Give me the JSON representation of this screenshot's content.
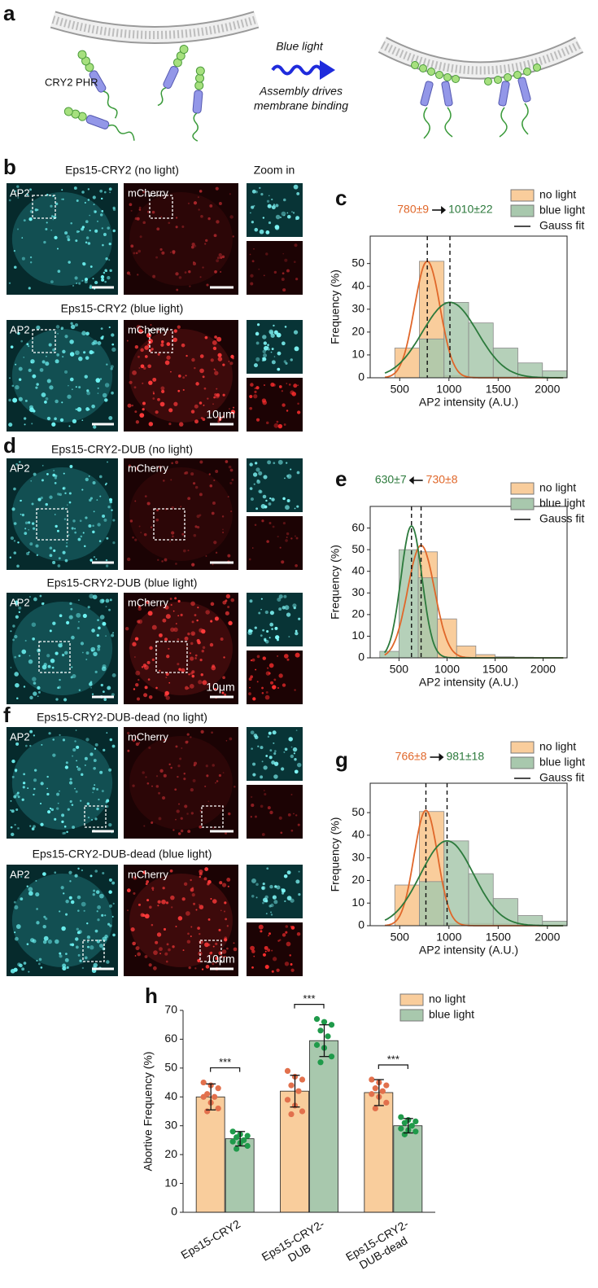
{
  "panel_a": {
    "label": "a",
    "protein": "CRY2 PHR",
    "stimulus": "Blue light",
    "result": [
      "Assembly drives",
      "membrane binding"
    ]
  },
  "image_panels": [
    {
      "label": "b",
      "zoom_title": "Zoom in",
      "rows": [
        {
          "title": "Eps15-CRY2 (no light)",
          "channels": [
            "AP2",
            "mCherry"
          ]
        },
        {
          "title": "Eps15-CRY2 (blue light)",
          "channels": [
            "AP2",
            "mCherry"
          ],
          "scale": "10μm"
        }
      ]
    },
    {
      "label": "d",
      "rows": [
        {
          "title": "Eps15-CRY2-DUB (no light)",
          "channels": [
            "AP2",
            "mCherry"
          ]
        },
        {
          "title": "Eps15-CRY2-DUB (blue light)",
          "channels": [
            "AP2",
            "mCherry"
          ],
          "scale": "10μm"
        }
      ]
    },
    {
      "label": "f",
      "rows": [
        {
          "title": "Eps15-CRY2-DUB-dead (no light)",
          "channels": [
            "AP2",
            "mCherry"
          ]
        },
        {
          "title": "Eps15-CRY2-DUB-dead (blue light)",
          "channels": [
            "AP2",
            "mCherry"
          ],
          "scale": "10μm"
        }
      ]
    }
  ],
  "chart_data": [
    {
      "type": "histogram",
      "panel": "c",
      "xlabel": "AP2 intensity (A.U.)",
      "ylabel": "Frequency (%)",
      "bins": [
        450,
        700,
        950,
        1200,
        1450,
        1700,
        1950,
        2200
      ],
      "series": [
        {
          "name": "no light",
          "color": "#f9cd9c",
          "values": [
            13,
            51,
            1,
            0.5,
            0.5,
            0.3,
            0.2
          ]
        },
        {
          "name": "blue light",
          "color": "#a8c8ad",
          "values": [
            0,
            17,
            33,
            24,
            13,
            6.5,
            3
          ]
        }
      ],
      "fit": {
        "name": "Gauss fit",
        "curves": [
          {
            "label": "780±9",
            "mean": 780,
            "sigma": 130,
            "peak": 51,
            "color": "#e0672a"
          },
          {
            "label": "1010±22",
            "mean": 1010,
            "sigma": 280,
            "peak": 33,
            "color": "#2c7a3c"
          }
        ]
      },
      "xlim": [
        200,
        2200
      ],
      "ylim": [
        0,
        62
      ],
      "xticks": [
        500,
        1000,
        1500,
        2000
      ],
      "yticks": [
        0,
        10,
        20,
        30,
        40,
        50
      ],
      "legend": "upper right"
    },
    {
      "type": "histogram",
      "panel": "e",
      "xlabel": "AP2 intensity (A.U.)",
      "ylabel": "Frequency (%)",
      "bins": [
        300,
        500,
        700,
        900,
        1100,
        1300,
        1500,
        1700,
        1900
      ],
      "series": [
        {
          "name": "no light",
          "color": "#f9cd9c",
          "values": [
            0,
            0,
            49,
            18,
            5.5,
            1.5,
            0.5,
            0.3
          ]
        },
        {
          "name": "blue light",
          "color": "#a8c8ad",
          "values": [
            3,
            50,
            37,
            0,
            0,
            0,
            0,
            0
          ]
        }
      ],
      "fit": {
        "name": "Gauss fit",
        "curves": [
          {
            "label": "730±8",
            "mean": 730,
            "sigma": 140,
            "peak": 52,
            "color": "#e0672a"
          },
          {
            "label": "630±7",
            "mean": 630,
            "sigma": 110,
            "peak": 61,
            "color": "#2c7a3c"
          }
        ]
      },
      "xlim": [
        200,
        2250
      ],
      "ylim": [
        0,
        70
      ],
      "xticks": [
        500,
        1000,
        1500,
        2000
      ],
      "yticks": [
        0,
        10,
        20,
        30,
        40,
        50,
        60
      ],
      "legend": "upper right"
    },
    {
      "type": "histogram",
      "panel": "g",
      "xlabel": "AP2 intensity (A.U.)",
      "ylabel": "Frequency (%)",
      "bins": [
        450,
        700,
        950,
        1200,
        1450,
        1700,
        1950,
        2200
      ],
      "series": [
        {
          "name": "no light",
          "color": "#f9cd9c",
          "values": [
            18,
            50.5,
            1,
            1,
            0.8,
            0.5,
            0.3
          ]
        },
        {
          "name": "blue light",
          "color": "#a8c8ad",
          "values": [
            0,
            19.5,
            37.5,
            23,
            12,
            4.5,
            2
          ]
        }
      ],
      "fit": {
        "name": "Gauss fit",
        "curves": [
          {
            "label": "766±8",
            "mean": 766,
            "sigma": 120,
            "peak": 51,
            "color": "#e0672a"
          },
          {
            "label": "981±18",
            "mean": 981,
            "sigma": 270,
            "peak": 37.5,
            "color": "#2c7a3c"
          }
        ]
      },
      "xlim": [
        200,
        2200
      ],
      "ylim": [
        0,
        63
      ],
      "xticks": [
        500,
        1000,
        1500,
        2000
      ],
      "yticks": [
        0,
        10,
        20,
        30,
        40,
        50
      ],
      "legend": "upper right"
    },
    {
      "type": "bar",
      "panel": "h",
      "ylabel": "Abortive Frequency (%)",
      "categories": [
        [
          "Eps15-CRY2"
        ],
        [
          "Eps15-CRY2-",
          "DUB"
        ],
        [
          "Eps15-CRY2-",
          "DUB-dead"
        ]
      ],
      "series": [
        {
          "name": "no light",
          "color": "#f9cd9c",
          "dot_color": "#e2704c",
          "values": [
            40,
            42,
            41.5
          ],
          "errors": [
            4.5,
            5.5,
            4.5
          ],
          "points": [
            [
              45,
              44,
              43,
              41,
              40,
              40,
              38,
              36,
              35
            ],
            [
              49,
              47,
              46,
              44,
              42,
              39,
              37,
              35,
              34
            ],
            [
              46,
              45,
              44,
              43,
              42,
              41,
              40,
              38,
              36
            ]
          ]
        },
        {
          "name": "blue light",
          "color": "#a8c8ad",
          "dot_color": "#1f9a4a",
          "values": [
            25.5,
            59.5,
            30
          ],
          "errors": [
            2.5,
            5.5,
            2.5
          ],
          "points": [
            [
              28,
              27,
              26.5,
              26,
              25,
              24.5,
              24,
              23,
              22
            ],
            [
              67,
              66,
              65,
              63,
              61,
              58,
              57,
              54,
              52
            ],
            [
              33,
              32,
              31.5,
              31,
              30,
              29,
              28.5,
              28,
              27
            ]
          ]
        }
      ],
      "significance": [
        "***",
        "***",
        "***"
      ],
      "ylim": [
        0,
        70
      ],
      "yticks": [
        0,
        10,
        20,
        30,
        40,
        50,
        60,
        70
      ],
      "legend": "upper right"
    }
  ]
}
